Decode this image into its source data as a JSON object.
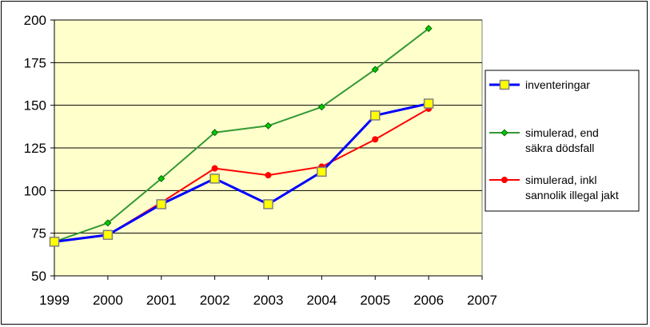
{
  "chart_data": {
    "type": "line",
    "title": "",
    "xlabel": "",
    "ylabel": "",
    "x": [
      1999,
      2000,
      2001,
      2002,
      2003,
      2004,
      2005,
      2006
    ],
    "xlim": [
      1999,
      2007
    ],
    "ylim": [
      50,
      200
    ],
    "x_ticks": [
      "1999",
      "2000",
      "2001",
      "2002",
      "2003",
      "2004",
      "2005",
      "2006",
      "2007"
    ],
    "y_ticks": [
      "50",
      "75",
      "100",
      "125",
      "150",
      "175",
      "200"
    ],
    "grid": "horizontal",
    "plot_background": "#FFFFCC",
    "legend_position": "right",
    "series": [
      {
        "name": "inventeringar",
        "color": "#0000FF",
        "marker": "square",
        "marker_fill": "#FFFF00",
        "values": [
          70,
          74,
          92,
          107,
          92,
          111,
          144,
          151
        ]
      },
      {
        "name": "simulerad, end säkra dödsfall",
        "legend_lines": [
          "simulerad, end",
          "säkra dödsfall"
        ],
        "color": "#339933",
        "marker": "diamond",
        "marker_fill": "#00CC00",
        "values": [
          70,
          81,
          107,
          134,
          138,
          149,
          171,
          195
        ]
      },
      {
        "name": "simulerad, inkl sannolik illegal jakt",
        "legend_lines": [
          "simulerad, inkl",
          "sannolik illegal jakt"
        ],
        "color": "#FF0000",
        "marker": "circle",
        "marker_fill": "#FF0000",
        "values": [
          70,
          74,
          93,
          113,
          109,
          114,
          130,
          148
        ]
      }
    ]
  }
}
